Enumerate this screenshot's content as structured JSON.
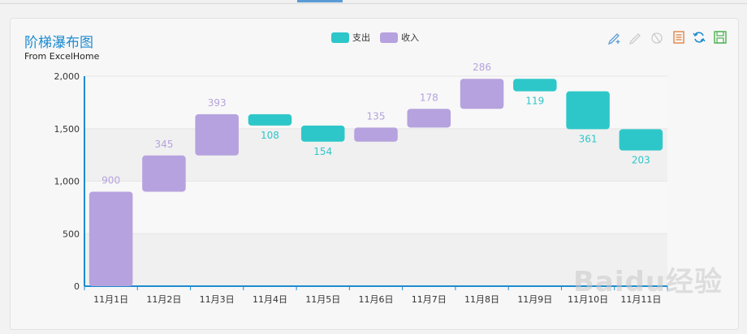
{
  "window": {
    "title": "阶梯瀑布图",
    "subtitle": "From ExcelHome"
  },
  "legend": [
    {
      "name": "支出",
      "color": "#2ec7c9"
    },
    {
      "name": "收入",
      "color": "#b6a2de"
    }
  ],
  "toolbox": [
    {
      "icon": "mark-pen-icon",
      "color": "#5b9bd5"
    },
    {
      "icon": "mark-undo-icon",
      "color": "#cccccc"
    },
    {
      "icon": "mark-clear-icon",
      "color": "#cccccc"
    },
    {
      "icon": "data-view-icon",
      "color": "#e07b39"
    },
    {
      "icon": "restore-icon",
      "color": "#1e8ccf"
    },
    {
      "icon": "save-image-icon",
      "color": "#4cb050"
    }
  ],
  "watermark": "Baidu经验",
  "chart_data": {
    "type": "bar",
    "subtype": "waterfall",
    "categories": [
      "11月1日",
      "11月2日",
      "11月3日",
      "11月4日",
      "11月5日",
      "11月6日",
      "11月7日",
      "11月8日",
      "11月9日",
      "11月10日",
      "11月11日"
    ],
    "series": [
      {
        "name": "支出",
        "color": "#2ec7c9",
        "values": [
          null,
          null,
          null,
          108,
          154,
          null,
          null,
          null,
          119,
          361,
          203
        ]
      },
      {
        "name": "收入",
        "color": "#b6a2de",
        "values": [
          900,
          345,
          393,
          null,
          null,
          135,
          178,
          286,
          null,
          null,
          null
        ]
      }
    ],
    "bases": [
      0,
      900,
      1245,
      1530,
      1376,
      1376,
      1511,
      1689,
      1856,
      1495,
      1292
    ],
    "yticks": [
      0,
      500,
      1000,
      1500,
      2000
    ],
    "ytick_labels": [
      "0",
      "500",
      "1,000",
      "1,500",
      "2,000"
    ],
    "ylim": [
      0,
      2000
    ],
    "grid": true,
    "legend_position": "top-center"
  }
}
